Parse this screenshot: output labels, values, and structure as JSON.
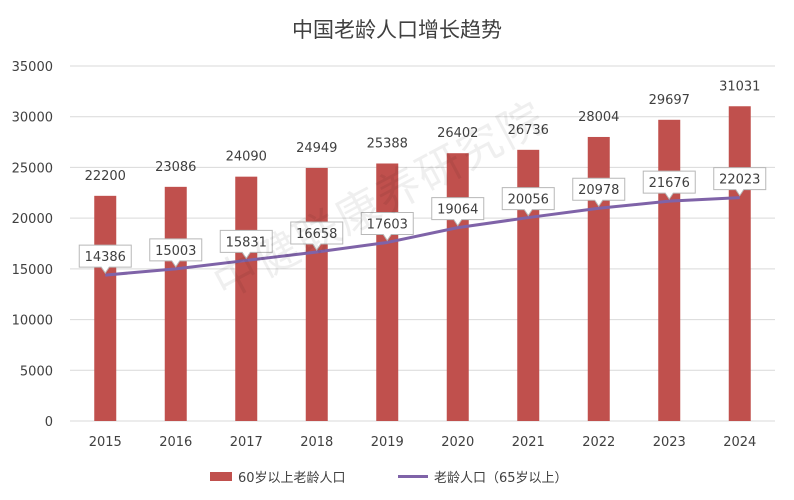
{
  "chart_data": {
    "type": "bar",
    "title": "中国老龄人口增长趋势",
    "categories": [
      "2015",
      "2016",
      "2017",
      "2018",
      "2019",
      "2020",
      "2021",
      "2022",
      "2023",
      "2024"
    ],
    "series": [
      {
        "name": "60岁以上老龄人口",
        "type": "bar",
        "values": [
          22200,
          23086,
          24090,
          24949,
          25388,
          26402,
          26736,
          28004,
          29697,
          31031
        ]
      },
      {
        "name": "老龄人口（65岁以上）",
        "type": "line",
        "values": [
          14386,
          15003,
          15831,
          16658,
          17603,
          19064,
          20056,
          20978,
          21676,
          22023
        ]
      }
    ],
    "yticks": [
      "0",
      "5000",
      "10000",
      "15000",
      "20000",
      "25000",
      "30000",
      "35000"
    ],
    "ylim": [
      0,
      35000
    ],
    "grid": true,
    "legend": "bottom",
    "colors": {
      "bar": "#c0504d",
      "line": "#7f63a8",
      "grid": "#d9d9d9",
      "text": "#404040"
    },
    "watermark": "中健联康养研究院"
  }
}
